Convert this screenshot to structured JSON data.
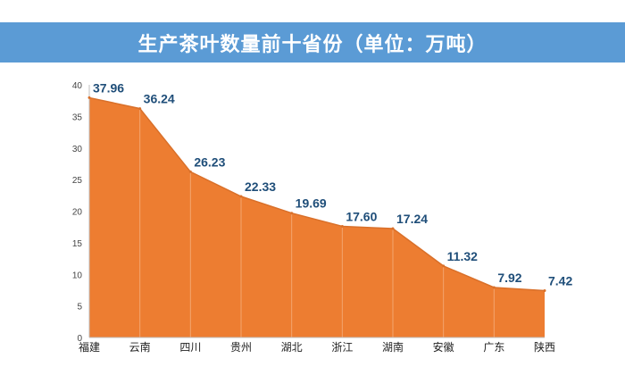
{
  "header": {
    "title": "生产茶叶数量前十省份（单位：万吨）"
  },
  "colors": {
    "banner": "#5b9bd5",
    "area": "#ed7d31",
    "data_label": "#1f4e79"
  },
  "chart_data": {
    "type": "area",
    "title": "生产茶叶数量前十省份（单位：万吨）",
    "categories": [
      "福建",
      "云南",
      "四川",
      "贵州",
      "湖北",
      "浙江",
      "湖南",
      "安徽",
      "广东",
      "陕西"
    ],
    "series": [
      {
        "values": [
          37.96,
          36.24,
          26.23,
          22.33,
          19.69,
          17.6,
          17.24,
          11.32,
          7.92,
          7.42
        ],
        "labels": [
          "37.96",
          "36.24",
          "26.23",
          "22.33",
          "19.69",
          "17.60",
          "17.24",
          "11.32",
          "7.92",
          "7.42"
        ]
      }
    ],
    "yticks": [
      "0",
      "5",
      "10",
      "15",
      "20",
      "25",
      "30",
      "35",
      "40"
    ],
    "ylim": [
      0,
      40
    ],
    "grid": false,
    "legend": "none"
  }
}
